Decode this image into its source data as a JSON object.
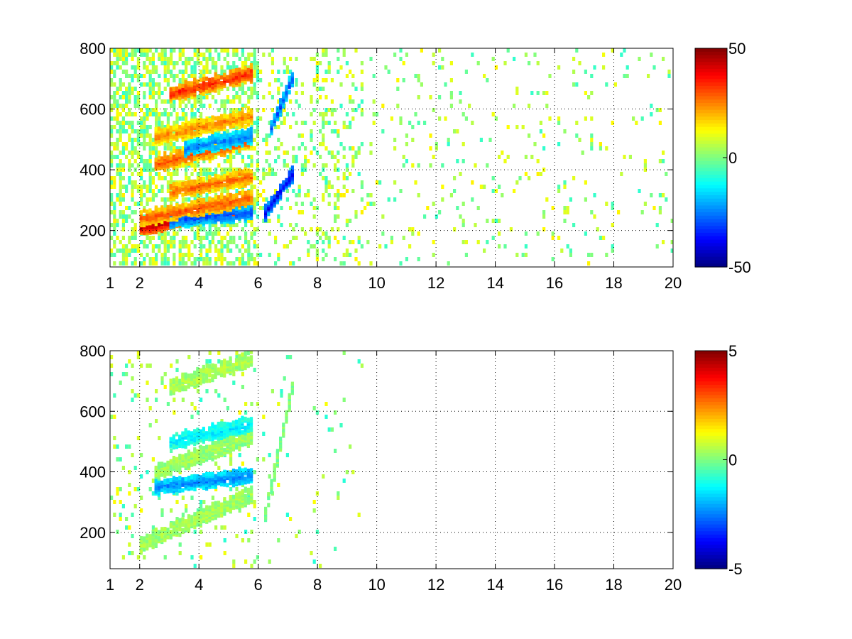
{
  "chart_data": [
    {
      "type": "heatmap",
      "title": "",
      "xlabel": "",
      "ylabel": "",
      "xlim": [
        1,
        20
      ],
      "ylim": [
        80,
        800
      ],
      "grid": true,
      "colormap": "jet",
      "x_ticks": [
        "1",
        "2",
        "4",
        "6",
        "8",
        "10",
        "12",
        "14",
        "16",
        "18",
        "20"
      ],
      "y_ticks": [
        "200",
        "400",
        "600",
        "800"
      ],
      "colorbar": {
        "min": -50,
        "max": 50,
        "ticks": [
          "50",
          "0",
          "-50"
        ]
      },
      "x_tick_values": [
        1,
        2,
        4,
        6,
        8,
        10,
        12,
        14,
        16,
        18,
        20
      ],
      "y_tick_values": [
        200,
        400,
        600,
        800
      ],
      "colorbar_tick_values": [
        50,
        0,
        -50
      ],
      "features": [
        {
          "label": "strong positive band",
          "x_range": [
            2,
            5.8
          ],
          "y_start": 210,
          "y_end": 290,
          "value": 45
        },
        {
          "label": "negative band below",
          "x_range": [
            3,
            5.8
          ],
          "y_start": 235,
          "y_end": 262,
          "value": -30
        },
        {
          "label": "positive band",
          "x_range": [
            2,
            5.8
          ],
          "y_start": 240,
          "y_end": 310,
          "value": 30
        },
        {
          "label": "positive band",
          "x_range": [
            3,
            5.8
          ],
          "y_start": 330,
          "y_end": 380,
          "value": 28
        },
        {
          "label": "positive band",
          "x_range": [
            2.5,
            5.8
          ],
          "y_start": 420,
          "y_end": 500,
          "value": 30
        },
        {
          "label": "negative band",
          "x_range": [
            3.5,
            5.8
          ],
          "y_start": 470,
          "y_end": 515,
          "value": -25
        },
        {
          "label": "positive band",
          "x_range": [
            2.5,
            5.8
          ],
          "y_start": 510,
          "y_end": 580,
          "value": 25
        },
        {
          "label": "positive band",
          "x_range": [
            3,
            5.8
          ],
          "y_start": 650,
          "y_end": 720,
          "value": 35
        },
        {
          "label": "negative arc",
          "x_range": [
            6.2,
            7.2
          ],
          "y_start": 260,
          "y_end": 400,
          "value": -40
        },
        {
          "label": "negative arc",
          "x_range": [
            6.4,
            7.2
          ],
          "y_start": 540,
          "y_end": 720,
          "value": -30
        }
      ]
    },
    {
      "type": "heatmap",
      "title": "",
      "xlabel": "",
      "ylabel": "",
      "xlim": [
        1,
        20
      ],
      "ylim": [
        80,
        800
      ],
      "grid": true,
      "colormap": "jet",
      "x_ticks": [
        "1",
        "2",
        "4",
        "6",
        "8",
        "10",
        "12",
        "14",
        "16",
        "18",
        "20"
      ],
      "y_ticks": [
        "200",
        "400",
        "600",
        "800"
      ],
      "colorbar": {
        "min": -5,
        "max": 5,
        "ticks": [
          "5",
          "0",
          "-5"
        ]
      },
      "x_tick_values": [
        1,
        2,
        4,
        6,
        8,
        10,
        12,
        14,
        16,
        18,
        20
      ],
      "y_tick_values": [
        200,
        400,
        600,
        800
      ],
      "colorbar_tick_values": [
        5,
        0,
        -5
      ],
      "features": [
        {
          "label": "near-zero band",
          "x_range": [
            2,
            5.8
          ],
          "y_start": 160,
          "y_end": 330,
          "value": 0.4
        },
        {
          "label": "negative band",
          "x_range": [
            2.5,
            5.8
          ],
          "y_start": 350,
          "y_end": 390,
          "value": -2.5
        },
        {
          "label": "near-zero band",
          "x_range": [
            2.5,
            5.8
          ],
          "y_start": 400,
          "y_end": 520,
          "value": 0.3
        },
        {
          "label": "negative band",
          "x_range": [
            3,
            5.8
          ],
          "y_start": 500,
          "y_end": 560,
          "value": -1.5
        },
        {
          "label": "near-zero band",
          "x_range": [
            3,
            5.8
          ],
          "y_start": 680,
          "y_end": 780,
          "value": 0.5
        },
        {
          "label": "near-zero arc",
          "x_range": [
            6.2,
            7.2
          ],
          "y_start": 260,
          "y_end": 720,
          "value": 0
        }
      ]
    }
  ]
}
